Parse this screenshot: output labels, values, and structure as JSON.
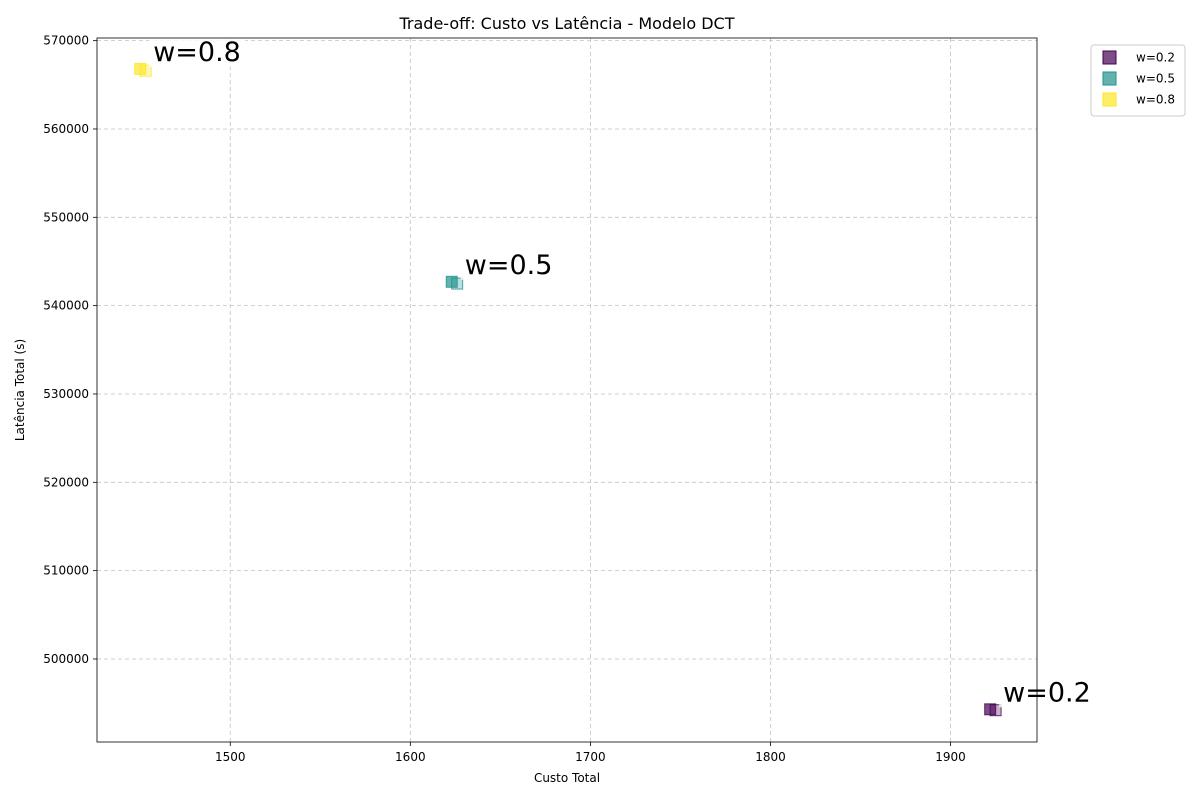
{
  "chart_data": {
    "type": "scatter",
    "title": "Trade-off: Custo vs Latência - Modelo DCT",
    "xlabel": "Custo Total",
    "ylabel": "Latência Total (s)",
    "xlim": [
      1426,
      1948
    ],
    "ylim": [
      490600,
      570300
    ],
    "xticks": [
      1500,
      1600,
      1700,
      1800,
      1900
    ],
    "yticks": [
      500000,
      510000,
      520000,
      530000,
      540000,
      550000,
      560000,
      570000
    ],
    "grid": true,
    "legend_position": "outside-top-right",
    "marker": "square",
    "series": [
      {
        "name": "w=0.2",
        "color": "#440154",
        "annotation": "w=0.2",
        "points": [
          [
            1922,
            494300
          ],
          [
            1925,
            494200
          ]
        ]
      },
      {
        "name": "w=0.5",
        "color": "#21918c",
        "annotation": "w=0.5",
        "points": [
          [
            1623,
            542700
          ],
          [
            1626,
            542500
          ]
        ]
      },
      {
        "name": "w=0.8",
        "color": "#fde725",
        "annotation": "w=0.8",
        "points": [
          [
            1450,
            566800
          ],
          [
            1453,
            566600
          ]
        ]
      }
    ]
  }
}
